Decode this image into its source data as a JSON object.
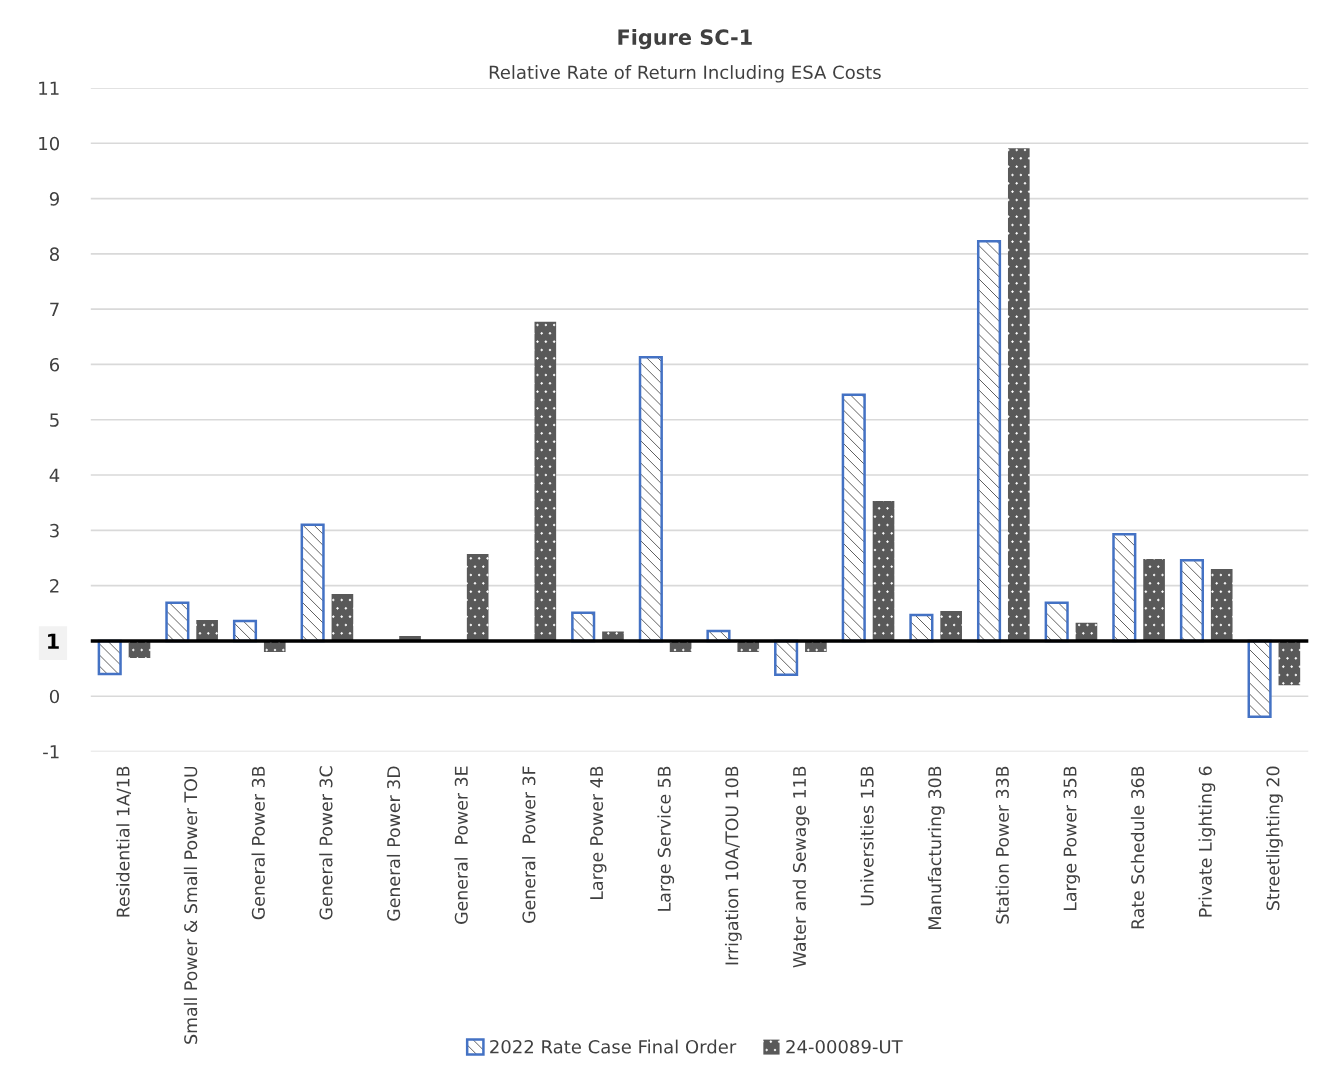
{
  "chart_data": {
    "type": "bar",
    "title": "Figure SC-1",
    "subtitle": "Relative Rate of Return Including ESA Costs",
    "categories": [
      "Residential 1A/1B",
      "Small Power & Small Power TOU",
      "General Power 3B",
      "General Power 3C",
      "General Power 3D",
      "General  Power 3E",
      "General  Power 3F",
      "Large Power 4B",
      "Large Service 5B",
      "Irrigation 10A/TOU 10B",
      "Water and Sewage 11B",
      "Universities 15B",
      "Manufacturing 30B",
      "Station Power 33B",
      "Large Power 35B",
      "Rate Schedule 36B",
      "Private Lighting 6",
      "Streetlighting 20"
    ],
    "series": [
      {
        "name": "2022 Rate Case Final Order",
        "color": "#4472c4",
        "base": [
          1,
          1,
          1,
          1,
          null,
          null,
          null,
          1,
          1,
          1,
          1,
          1,
          1,
          1,
          1,
          1,
          1,
          1
        ],
        "values": [
          -0.6,
          0.69,
          0.36,
          2.1,
          null,
          null,
          null,
          0.51,
          5.13,
          0.18,
          -0.61,
          4.45,
          0.47,
          7.23,
          0.69,
          1.93,
          1.46,
          -1.37
        ]
      },
      {
        "name": "24-00089-UT",
        "color": "#595959",
        "base": [
          1,
          1,
          1,
          1,
          1,
          1,
          1,
          1,
          1,
          1,
          1,
          1,
          1,
          1,
          1,
          1,
          1,
          1
        ],
        "values": [
          -0.31,
          0.38,
          -0.2,
          0.85,
          0.09,
          1.57,
          5.77,
          0.17,
          -0.2,
          -0.2,
          -0.2,
          2.53,
          0.54,
          8.91,
          0.33,
          1.48,
          1.3,
          -0.8
        ]
      }
    ],
    "ylim": [
      -1,
      11
    ],
    "yticks": [
      -1,
      0,
      1,
      2,
      3,
      4,
      5,
      6,
      7,
      8,
      9,
      10,
      11
    ],
    "ref_lines": [
      {
        "axis": "y",
        "value": 1,
        "color": "#000000"
      }
    ],
    "grid": "y",
    "legend": "bottom"
  }
}
